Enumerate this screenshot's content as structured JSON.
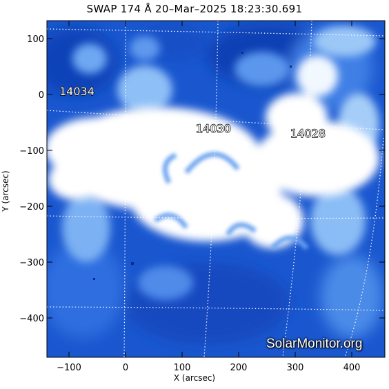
{
  "title": "SWAP 174 Å 20–Mar–2025 18:23:30.691",
  "xlabel": "X (arcsec)",
  "ylabel": "Y (arcsec)",
  "x_ticks": [
    "−100",
    "0",
    "100",
    "200",
    "300",
    "400"
  ],
  "y_ticks": [
    "100",
    "0",
    "−100",
    "−200",
    "−300",
    "−400"
  ],
  "regions": [
    "14034",
    "14030",
    "14028"
  ],
  "watermark": "SolarMonitor.org",
  "colors": {
    "deep": "#0b3fb4",
    "mid": "#2f6fe0",
    "light": "#8fc0f6",
    "saturated": "#ffffff"
  }
}
